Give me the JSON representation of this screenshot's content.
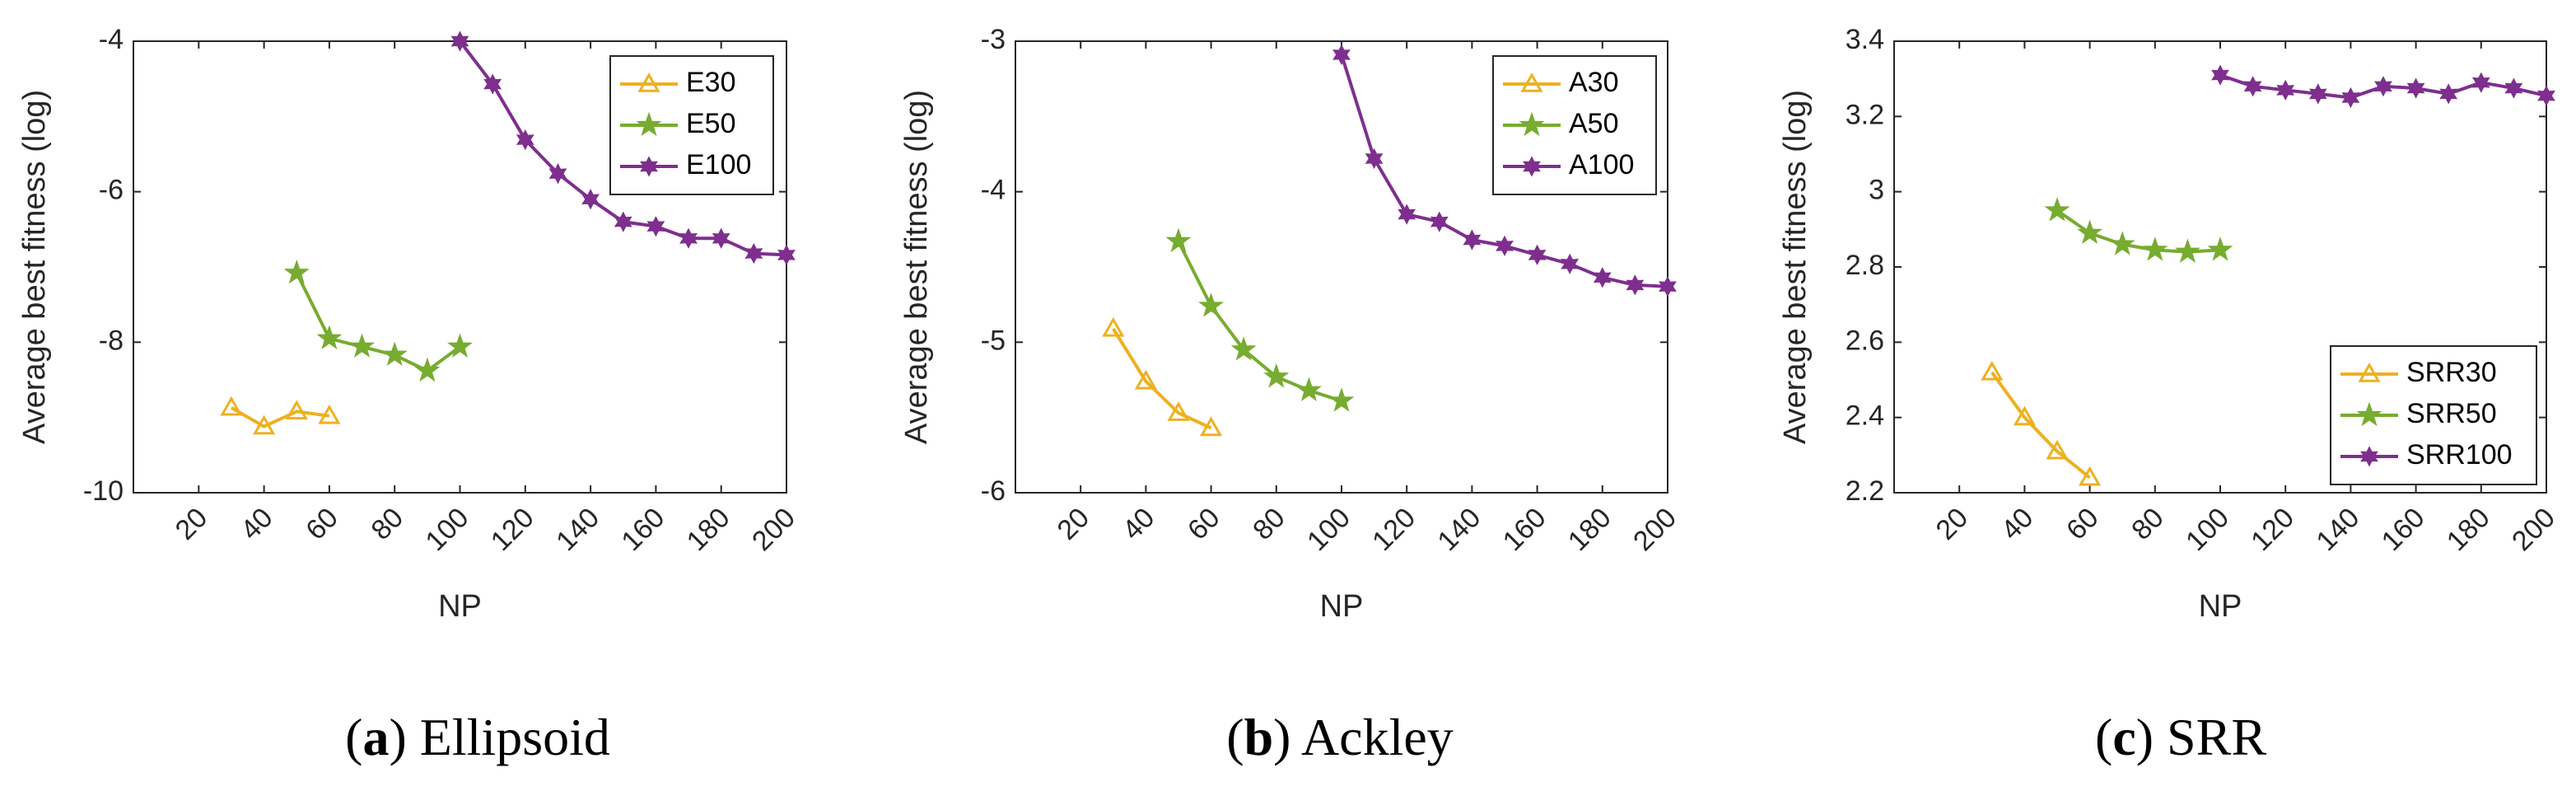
{
  "colors": {
    "s30": "#EDB120",
    "s50": "#77AC30",
    "s100": "#7E2F8E",
    "axis": "#262626",
    "frame": "#262626"
  },
  "chart_data": [
    {
      "type": "line",
      "caption_letter": "(a)",
      "caption_name": " Ellipsoid",
      "xlabel": "NP",
      "ylabel": "Average best fitness (log)",
      "xlim": [
        0,
        200
      ],
      "ylim": [
        -10,
        -4
      ],
      "xticks": [
        20,
        40,
        60,
        80,
        100,
        120,
        140,
        160,
        180,
        200
      ],
      "xtick_labels": [
        "20",
        "40",
        "60",
        "80",
        "100",
        "120",
        "140",
        "160",
        "180",
        "200"
      ],
      "yticks": [
        -10,
        -8,
        -6,
        -4
      ],
      "ytick_labels": [
        "-10",
        "-8",
        "-6",
        "-4"
      ],
      "legend_position": "top-right",
      "series": [
        {
          "name": "E30",
          "marker": "triangle",
          "color_key": "s30",
          "x": [
            30,
            40,
            50,
            60
          ],
          "y": [
            -8.87,
            -9.12,
            -8.92,
            -8.98
          ]
        },
        {
          "name": "E50",
          "marker": "star",
          "color_key": "s50",
          "x": [
            50,
            60,
            70,
            80,
            90,
            100
          ],
          "y": [
            -7.08,
            -7.95,
            -8.06,
            -8.17,
            -8.38,
            -8.06
          ]
        },
        {
          "name": "E100",
          "marker": "hexagram",
          "color_key": "s100",
          "x": [
            100,
            110,
            120,
            130,
            140,
            150,
            160,
            170,
            180,
            190,
            200
          ],
          "y": [
            -4.0,
            -4.57,
            -5.31,
            -5.76,
            -6.1,
            -6.4,
            -6.46,
            -6.62,
            -6.62,
            -6.82,
            -6.84
          ]
        }
      ]
    },
    {
      "type": "line",
      "caption_letter": "(b)",
      "caption_name": " Ackley",
      "xlabel": "NP",
      "ylabel": "Average best fitness (log)",
      "xlim": [
        0,
        200
      ],
      "ylim": [
        -6,
        -3
      ],
      "xticks": [
        20,
        40,
        60,
        80,
        100,
        120,
        140,
        160,
        180,
        200
      ],
      "xtick_labels": [
        "20",
        "40",
        "60",
        "80",
        "100",
        "120",
        "140",
        "160",
        "180",
        "200"
      ],
      "yticks": [
        -6,
        -5,
        -4,
        -3
      ],
      "ytick_labels": [
        "-6",
        "-5",
        "-4",
        "-3"
      ],
      "legend_position": "top-right",
      "series": [
        {
          "name": "A30",
          "marker": "triangle",
          "color_key": "s30",
          "x": [
            30,
            40,
            50,
            60
          ],
          "y": [
            -4.91,
            -5.26,
            -5.47,
            -5.57
          ]
        },
        {
          "name": "A50",
          "marker": "star",
          "color_key": "s50",
          "x": [
            50,
            60,
            70,
            80,
            90,
            100
          ],
          "y": [
            -4.33,
            -4.76,
            -5.05,
            -5.23,
            -5.32,
            -5.39
          ]
        },
        {
          "name": "A100",
          "marker": "hexagram",
          "color_key": "s100",
          "x": [
            100,
            110,
            120,
            130,
            140,
            150,
            160,
            170,
            180,
            190,
            200
          ],
          "y": [
            -3.09,
            -3.78,
            -4.15,
            -4.2,
            -4.32,
            -4.36,
            -4.42,
            -4.48,
            -4.57,
            -4.62,
            -4.63
          ]
        }
      ]
    },
    {
      "type": "line",
      "caption_letter": "(c)",
      "caption_name": " SRR",
      "xlabel": "NP",
      "ylabel": "Average best fitness (log)",
      "xlim": [
        0,
        200
      ],
      "ylim": [
        2.2,
        3.4
      ],
      "xticks": [
        20,
        40,
        60,
        80,
        100,
        120,
        140,
        160,
        180,
        200
      ],
      "xtick_labels": [
        "20",
        "40",
        "60",
        "80",
        "100",
        "120",
        "140",
        "160",
        "180",
        "200"
      ],
      "yticks": [
        2.2,
        2.4,
        2.6,
        2.8,
        3.0,
        3.2,
        3.4
      ],
      "ytick_labels": [
        "2.2",
        "2.4",
        "2.6",
        "2.8",
        "3",
        "3.2",
        "3.4"
      ],
      "legend_position": "bottom-right",
      "series": [
        {
          "name": "SRR30",
          "marker": "triangle",
          "color_key": "s30",
          "x": [
            30,
            40,
            50,
            60
          ],
          "y": [
            2.52,
            2.4,
            2.31,
            2.24
          ]
        },
        {
          "name": "SRR50",
          "marker": "star",
          "color_key": "s50",
          "x": [
            50,
            60,
            70,
            80,
            90,
            100
          ],
          "y": [
            2.95,
            2.89,
            2.86,
            2.845,
            2.84,
            2.845
          ]
        },
        {
          "name": "SRR100",
          "marker": "hexagram",
          "color_key": "s100",
          "x": [
            100,
            110,
            120,
            130,
            140,
            150,
            160,
            170,
            180,
            190,
            200
          ],
          "y": [
            3.31,
            3.28,
            3.27,
            3.26,
            3.25,
            3.28,
            3.275,
            3.26,
            3.29,
            3.275,
            3.255
          ]
        }
      ]
    }
  ]
}
